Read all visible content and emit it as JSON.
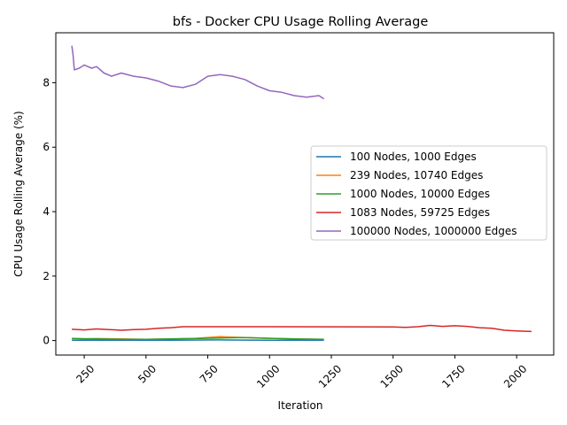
{
  "chart_data": {
    "type": "line",
    "title": "bfs - Docker CPU Usage Rolling Average",
    "xlabel": "Iteration",
    "ylabel": "CPU Usage Rolling Average (%)",
    "xlim": [
      135,
      2150
    ],
    "ylim": [
      -0.45,
      9.55
    ],
    "xticks": [
      250,
      500,
      750,
      1000,
      1250,
      1500,
      1750,
      2000
    ],
    "yticks": [
      0,
      2,
      4,
      6,
      8
    ],
    "legend_position": "center-right",
    "grid": false,
    "series": [
      {
        "name": "100 Nodes, 1000 Edges",
        "color": "#1f77b4",
        "points": [
          [
            200,
            0.01
          ],
          [
            400,
            0.01
          ],
          [
            600,
            0.01
          ],
          [
            800,
            0.02
          ],
          [
            1000,
            0.01
          ],
          [
            1220,
            0.01
          ]
        ]
      },
      {
        "name": "239 Nodes, 10740 Edges",
        "color": "#ff7f0e",
        "points": [
          [
            200,
            0.07
          ],
          [
            250,
            0.05
          ],
          [
            300,
            0.06
          ],
          [
            400,
            0.05
          ],
          [
            500,
            0.04
          ],
          [
            600,
            0.05
          ],
          [
            700,
            0.07
          ],
          [
            800,
            0.12
          ],
          [
            900,
            0.09
          ],
          [
            1000,
            0.07
          ],
          [
            1100,
            0.05
          ],
          [
            1220,
            0.04
          ]
        ]
      },
      {
        "name": "1000 Nodes, 10000 Edges",
        "color": "#2ca02c",
        "points": [
          [
            200,
            0.06
          ],
          [
            300,
            0.05
          ],
          [
            400,
            0.04
          ],
          [
            500,
            0.04
          ],
          [
            600,
            0.05
          ],
          [
            700,
            0.06
          ],
          [
            800,
            0.08
          ],
          [
            900,
            0.09
          ],
          [
            1000,
            0.07
          ],
          [
            1100,
            0.05
          ],
          [
            1220,
            0.04
          ]
        ]
      },
      {
        "name": "1083 Nodes, 59725 Edges",
        "color": "#d62728",
        "points": [
          [
            200,
            0.35
          ],
          [
            250,
            0.33
          ],
          [
            300,
            0.36
          ],
          [
            350,
            0.34
          ],
          [
            400,
            0.32
          ],
          [
            450,
            0.34
          ],
          [
            500,
            0.35
          ],
          [
            550,
            0.38
          ],
          [
            600,
            0.4
          ],
          [
            650,
            0.43
          ],
          [
            1000,
            0.43
          ],
          [
            1500,
            0.42
          ],
          [
            1550,
            0.41
          ],
          [
            1600,
            0.43
          ],
          [
            1650,
            0.47
          ],
          [
            1700,
            0.44
          ],
          [
            1750,
            0.46
          ],
          [
            1800,
            0.44
          ],
          [
            1850,
            0.4
          ],
          [
            1900,
            0.38
          ],
          [
            1950,
            0.32
          ],
          [
            2000,
            0.3
          ],
          [
            2060,
            0.28
          ]
        ]
      },
      {
        "name": "100000 Nodes, 1000000 Edges",
        "color": "#9467bd",
        "points": [
          [
            200,
            9.15
          ],
          [
            205,
            8.85
          ],
          [
            210,
            8.4
          ],
          [
            230,
            8.45
          ],
          [
            250,
            8.55
          ],
          [
            280,
            8.45
          ],
          [
            300,
            8.5
          ],
          [
            330,
            8.3
          ],
          [
            360,
            8.2
          ],
          [
            400,
            8.3
          ],
          [
            450,
            8.2
          ],
          [
            500,
            8.15
          ],
          [
            550,
            8.05
          ],
          [
            600,
            7.9
          ],
          [
            650,
            7.85
          ],
          [
            700,
            7.95
          ],
          [
            750,
            8.2
          ],
          [
            800,
            8.25
          ],
          [
            850,
            8.2
          ],
          [
            900,
            8.1
          ],
          [
            950,
            7.9
          ],
          [
            1000,
            7.75
          ],
          [
            1050,
            7.7
          ],
          [
            1100,
            7.6
          ],
          [
            1150,
            7.55
          ],
          [
            1200,
            7.6
          ],
          [
            1220,
            7.5
          ]
        ]
      }
    ]
  }
}
